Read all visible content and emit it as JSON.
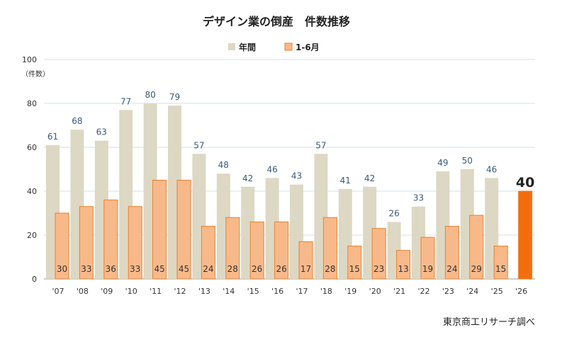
{
  "chart_data": {
    "type": "bar",
    "title": "デザイン業の倒産　件数推移",
    "unit_label": "（件数）",
    "source": "東京商工リサーチ調べ",
    "categories": [
      "'07",
      "'08",
      "'09",
      "'10",
      "'11",
      "'12",
      "'13",
      "'14",
      "'15",
      "'16",
      "'17",
      "'18",
      "'19",
      "'20",
      "'21",
      "'22",
      "'23",
      "'24",
      "'25",
      "'26"
    ],
    "series": [
      {
        "name": "年間",
        "color": "#ddd8c4",
        "values": [
          61,
          68,
          63,
          77,
          80,
          79,
          57,
          48,
          42,
          46,
          43,
          57,
          41,
          42,
          26,
          33,
          49,
          50,
          46,
          null
        ]
      },
      {
        "name": "1-6月",
        "color": "#f8b98a",
        "stroke": "#e9802f",
        "highlight_color": "#f46d0d",
        "values": [
          30,
          33,
          36,
          33,
          45,
          45,
          24,
          28,
          26,
          26,
          17,
          28,
          15,
          23,
          13,
          19,
          24,
          29,
          15,
          40
        ]
      }
    ],
    "ylim": [
      0,
      100
    ],
    "yticks": [
      0,
      20,
      40,
      60,
      80,
      100
    ],
    "grid": true,
    "legend_position": "top-center"
  }
}
